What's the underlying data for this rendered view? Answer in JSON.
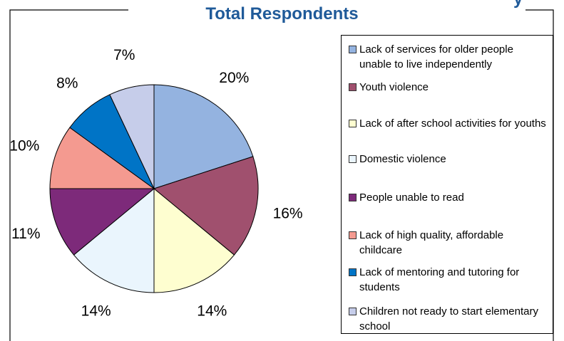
{
  "chart_data": {
    "type": "pie",
    "title": "Total Respondents",
    "title_partial": "y",
    "categories": [
      "Lack of services for older people unable to live independently",
      "Youth violence",
      "Lack of after school activities for youths",
      "Domestic violence",
      "People unable to read",
      "Lack of high quality, affordable childcare",
      "Lack of mentoring and tutoring for students",
      "Children not ready to start elementary school"
    ],
    "values": [
      20,
      16,
      14,
      14,
      11,
      10,
      8,
      7
    ],
    "labels": [
      "20%",
      "16%",
      "14%",
      "14%",
      "11%",
      "10%",
      "8%",
      "7%"
    ],
    "colors": [
      "#94b3e0",
      "#a0506e",
      "#fefed0",
      "#eaf5fd",
      "#7d2a7a",
      "#f49a90",
      "#0074c6",
      "#c6cdea"
    ],
    "legend_position": "right"
  }
}
